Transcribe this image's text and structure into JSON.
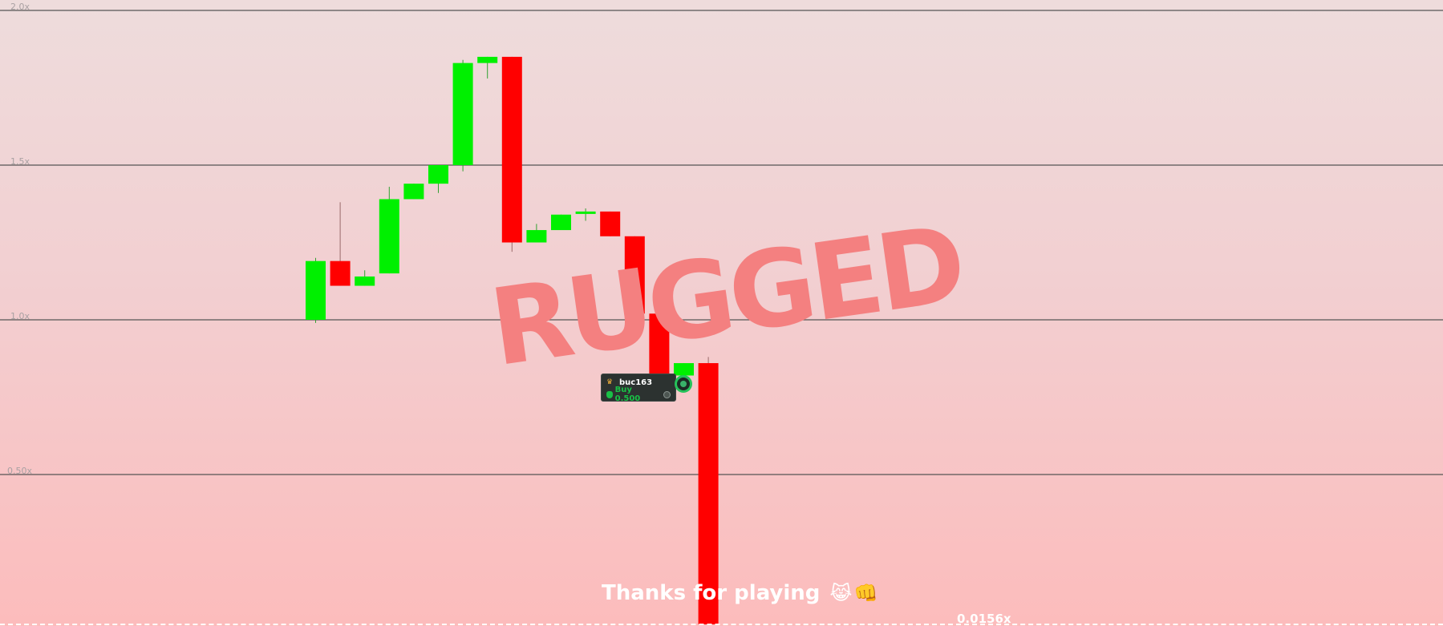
{
  "game": {
    "status_stamp": "RUGGED",
    "end_message": "Thanks for playing",
    "end_emoji": "😹👊",
    "final_multiplier": "0.0156x"
  },
  "axis": {
    "labels": [
      "2.0x",
      "1.5x",
      "1.0x",
      "0.50x"
    ]
  },
  "trade": {
    "username": "buc163",
    "action": "Buy 0.500",
    "crown_icon": "crown-icon",
    "bag_icon": "money-bag-icon",
    "coin_icon": "coin-icon"
  },
  "colors": {
    "up": "#00f000",
    "down": "#ff0000",
    "stamp": "#f48080",
    "buy_marker": "#25c25a"
  },
  "chart_data": {
    "type": "candlestick",
    "y_unit": "x",
    "y_ticks": [
      2.0,
      1.5,
      1.0,
      0.5
    ],
    "ylim": [
      0.0156,
      2.0
    ],
    "grid": true,
    "candles": [
      {
        "open": 1.0,
        "close": 1.19,
        "high": 1.2,
        "low": 0.99
      },
      {
        "open": 1.19,
        "close": 1.11,
        "high": 1.38,
        "low": 1.11
      },
      {
        "open": 1.11,
        "close": 1.14,
        "high": 1.16,
        "low": 1.11
      },
      {
        "open": 1.15,
        "close": 1.39,
        "high": 1.43,
        "low": 1.15
      },
      {
        "open": 1.39,
        "close": 1.44,
        "high": 1.44,
        "low": 1.39
      },
      {
        "open": 1.44,
        "close": 1.5,
        "high": 1.5,
        "low": 1.41
      },
      {
        "open": 1.5,
        "close": 1.83,
        "high": 1.84,
        "low": 1.48
      },
      {
        "open": 1.83,
        "close": 1.85,
        "high": 1.85,
        "low": 1.78
      },
      {
        "open": 1.85,
        "close": 1.25,
        "high": 1.85,
        "low": 1.22
      },
      {
        "open": 1.25,
        "close": 1.29,
        "high": 1.31,
        "low": 1.25
      },
      {
        "open": 1.29,
        "close": 1.34,
        "high": 1.34,
        "low": 1.29
      },
      {
        "open": 1.35,
        "close": 1.35,
        "high": 1.36,
        "low": 1.32
      },
      {
        "open": 1.35,
        "close": 1.27,
        "high": 1.35,
        "low": 1.27
      },
      {
        "open": 1.27,
        "close": 1.02,
        "high": 1.27,
        "low": 1.02
      },
      {
        "open": 1.02,
        "close": 0.82,
        "high": 1.02,
        "low": 0.82
      },
      {
        "open": 0.82,
        "close": 0.86,
        "high": 0.86,
        "low": 0.82
      },
      {
        "open": 0.86,
        "close": 0.0156,
        "high": 0.88,
        "low": 0.0156
      }
    ]
  }
}
